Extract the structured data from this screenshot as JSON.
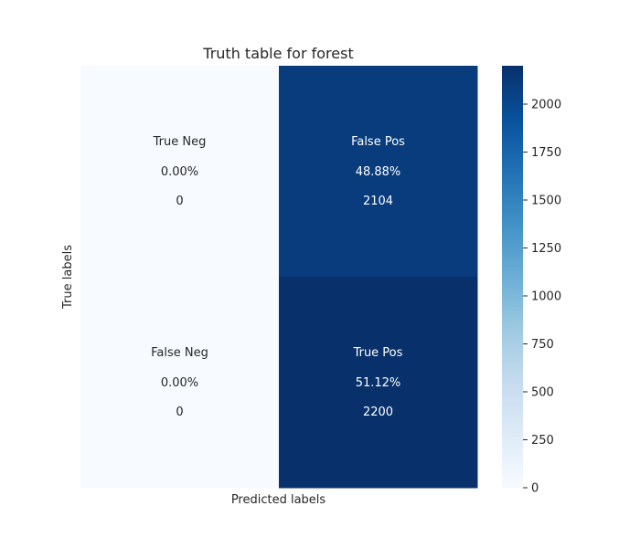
{
  "chart_data": {
    "type": "heatmap",
    "title": "Truth table for forest",
    "xlabel": "Predicted labels",
    "ylabel": "True labels",
    "cells": [
      [
        {
          "name": "True Neg",
          "percent": "0.00%",
          "count": "0",
          "value": 0
        },
        {
          "name": "False Pos",
          "percent": "48.88%",
          "count": "2104",
          "value": 2104
        }
      ],
      [
        {
          "name": "False Neg",
          "percent": "0.00%",
          "count": "0",
          "value": 0
        },
        {
          "name": "True Pos",
          "percent": "51.12%",
          "count": "2200",
          "value": 2200
        }
      ]
    ],
    "colorbar": {
      "colormap": "Blues",
      "range": [
        0,
        2200
      ],
      "ticks": [
        0,
        250,
        500,
        750,
        1000,
        1250,
        1500,
        1750,
        2000
      ],
      "tick_labels": [
        "0",
        "250",
        "500",
        "750",
        "1000",
        "1250",
        "1500",
        "1750",
        "2000"
      ]
    },
    "x_tick_labels": [],
    "y_tick_labels": [],
    "grid": false
  }
}
